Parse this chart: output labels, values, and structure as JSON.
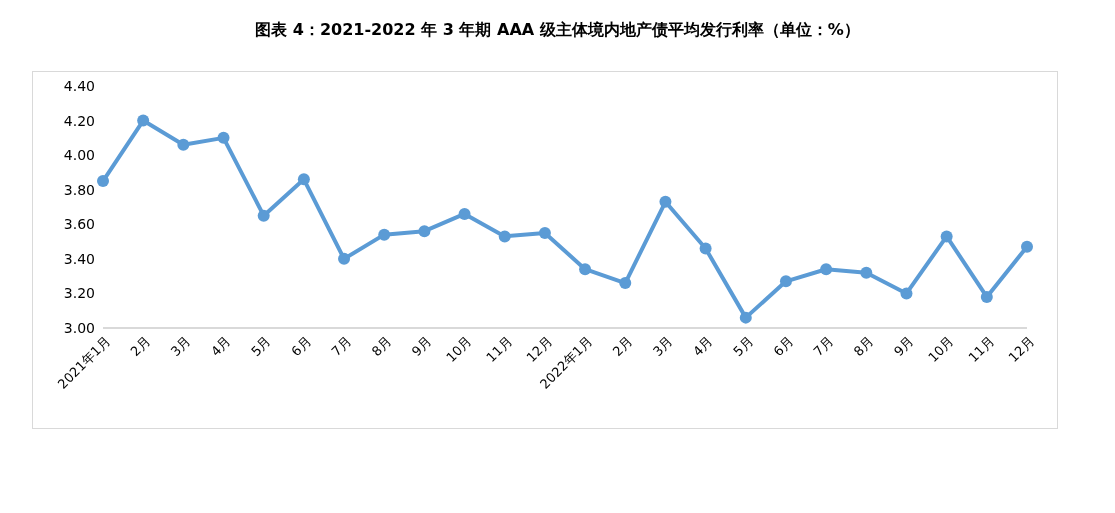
{
  "chart_data": {
    "type": "line",
    "title": "图表 4：2021-2022 年 3 年期 AAA 级主体境内地产债平均发行利率（单位：%）",
    "categories": [
      "2021年1月",
      "2月",
      "3月",
      "4月",
      "5月",
      "6月",
      "7月",
      "8月",
      "9月",
      "10月",
      "11月",
      "12月",
      "2022年1月",
      "2月",
      "3月",
      "4月",
      "5月",
      "6月",
      "7月",
      "8月",
      "9月",
      "10月",
      "11月",
      "12月"
    ],
    "series": [
      {
        "color": "#5b9bd5",
        "values": [
          3.85,
          4.2,
          4.06,
          4.1,
          3.65,
          3.86,
          3.4,
          3.54,
          3.56,
          3.66,
          3.53,
          3.55,
          3.34,
          3.26,
          3.73,
          3.46,
          3.06,
          3.27,
          3.34,
          3.32,
          3.2,
          3.53,
          3.18,
          3.47
        ]
      }
    ],
    "ylim": [
      3.0,
      4.4
    ],
    "yticks": [
      {
        "value": 3.0,
        "label": "3.00"
      },
      {
        "value": 3.2,
        "label": "3.20"
      },
      {
        "value": 3.4,
        "label": "3.40"
      },
      {
        "value": 3.6,
        "label": "3.60"
      },
      {
        "value": 3.8,
        "label": "3.80"
      },
      {
        "value": 4.0,
        "label": "4.00"
      },
      {
        "value": 4.2,
        "label": "4.20"
      },
      {
        "value": 4.4,
        "label": "4.40"
      }
    ],
    "grid": false,
    "legend": false,
    "marker": "circle",
    "line_style": "solid"
  }
}
